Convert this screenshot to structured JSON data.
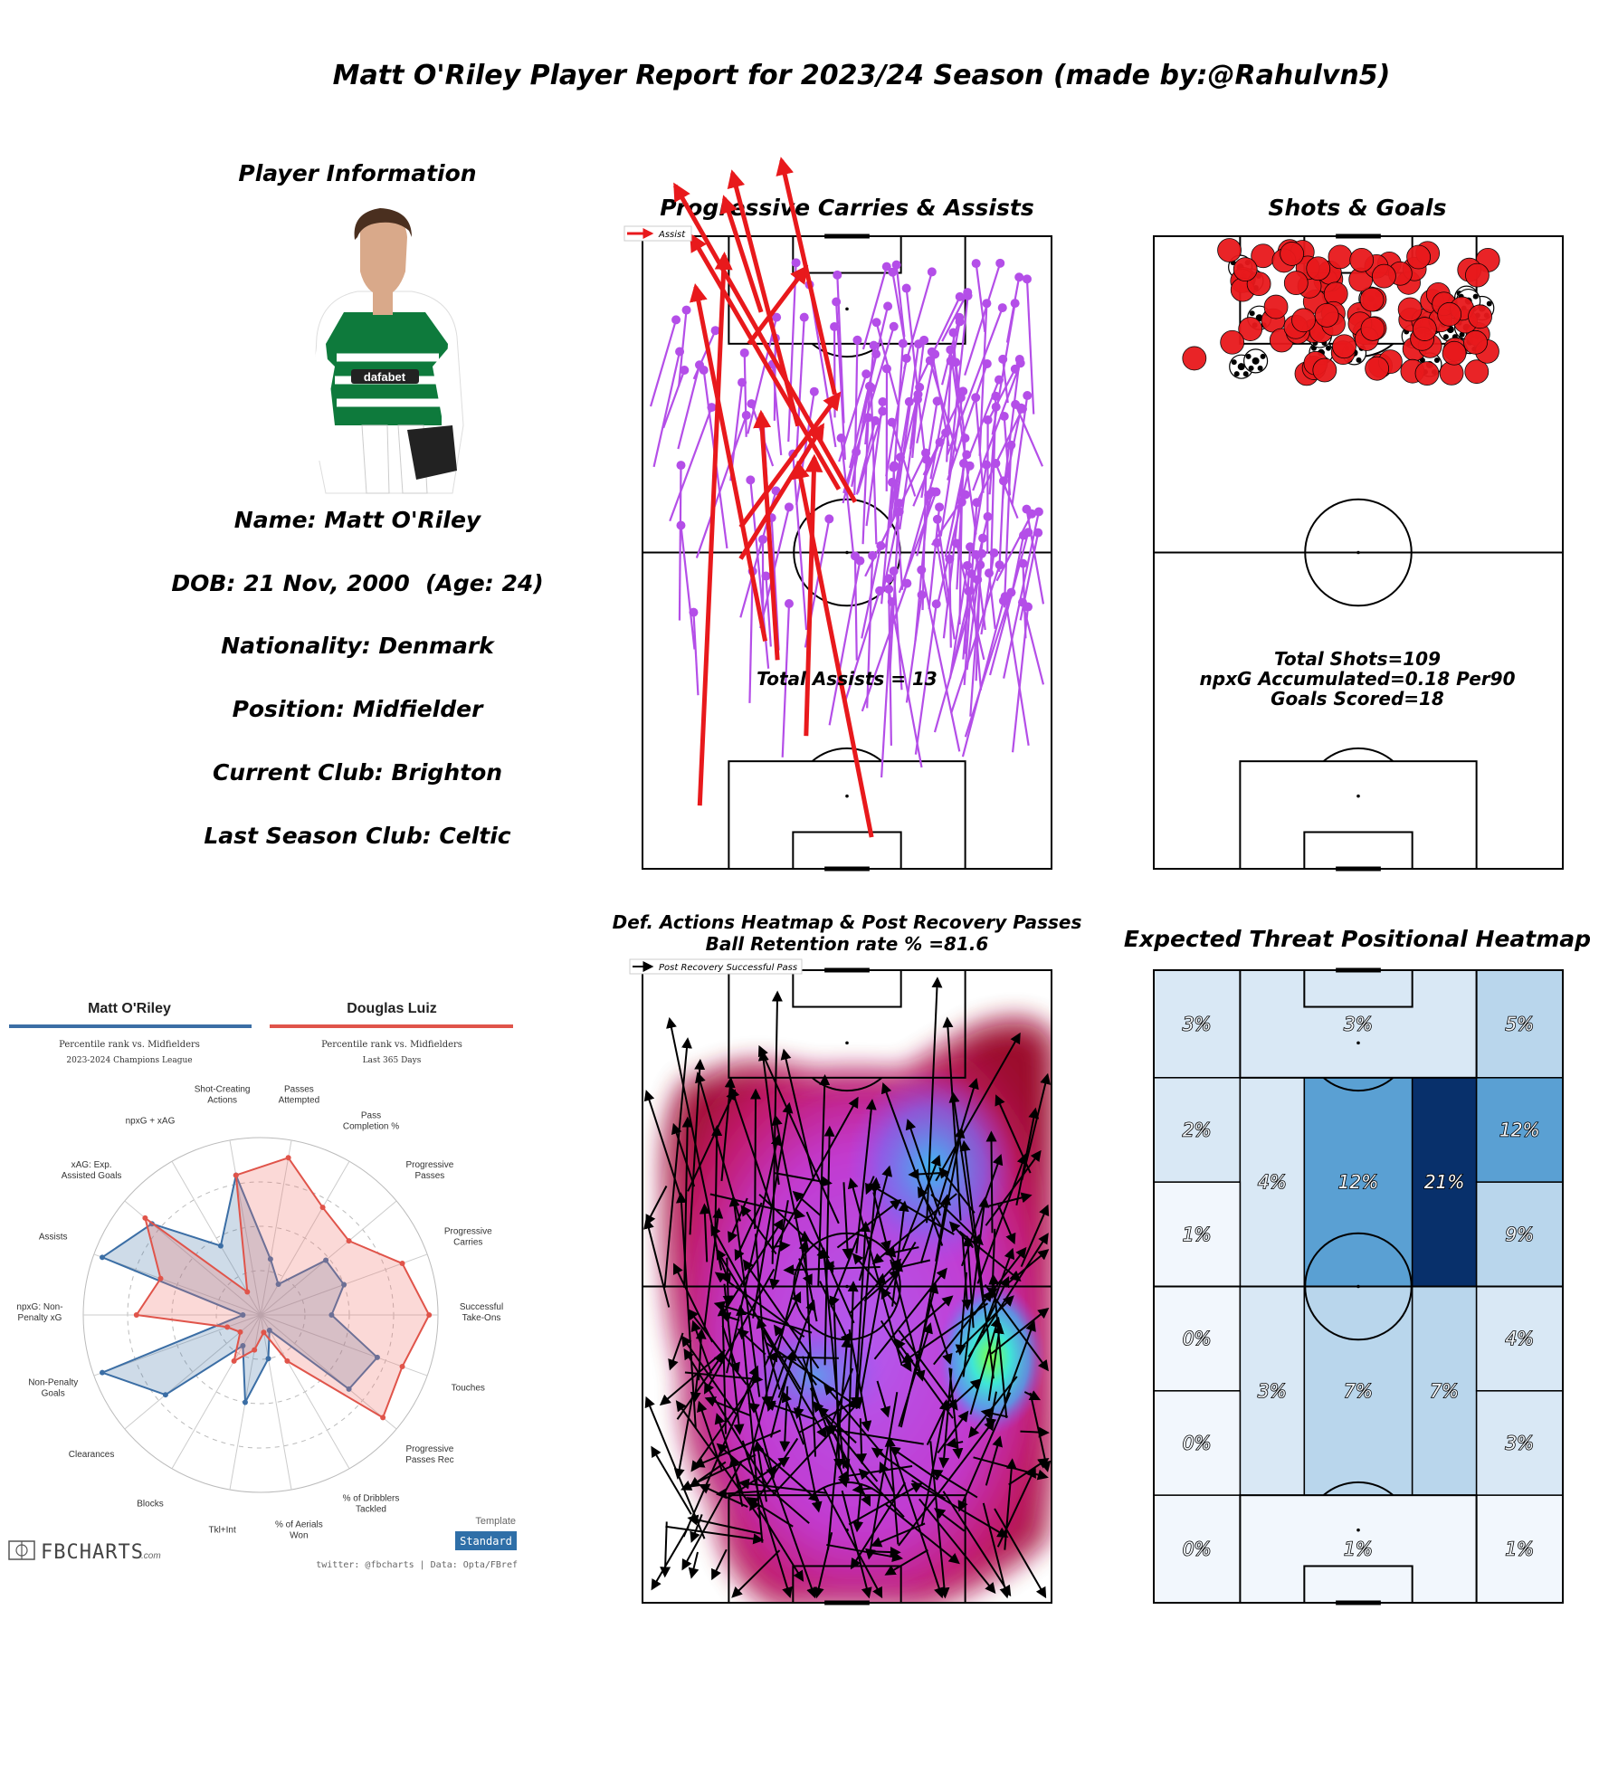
{
  "report": {
    "title": "Matt O'Riley Player Report for 2023/24 Season (made by:@Rahulvn5)"
  },
  "player_info": {
    "heading": "Player Information",
    "lines": [
      "Name: Matt O'Riley",
      "DOB: 21 Nov, 2000  (Age: 24)",
      "Nationality: Denmark",
      "Position: Midfielder",
      "Current Club: Brighton",
      "Last Season Club: Celtic"
    ],
    "photo_kit_colors": {
      "green": "#0e7a3c",
      "white": "#ffffff",
      "skin": "#d9a98a",
      "hair": "#4a2f1f"
    }
  },
  "radar": {
    "player_a": {
      "name": "Matt O'Riley",
      "subtitle": "Percentile rank vs. Midfielders",
      "competition": "2023-2024 Champions League",
      "color": "#3b6ea5"
    },
    "player_b": {
      "name": "Douglas Luiz",
      "subtitle": "Percentile rank vs. Midfielders",
      "competition": "Last 365 Days",
      "color": "#e0544a"
    },
    "brand": "FBCHARTS",
    "brand_suffix": ".com",
    "template_label": "Template",
    "template_value": "Standard",
    "footer": "twitter: @fbcharts | Data: Opta/FBref"
  },
  "chart_data": [
    {
      "type": "scatter",
      "title": "Progressive Carries & Assists",
      "legend": "Assist",
      "annotation": "Total Assists = 13",
      "colors": {
        "carry": "#b44ee8",
        "assist": "#e8191c"
      },
      "assists": [
        {
          "x": 83,
          "y": 26,
          "x2": 95,
          "y2": 40
        },
        {
          "x": 70,
          "y": 38,
          "x2": 110,
          "y2": 22
        },
        {
          "x": 75,
          "y": 47,
          "x2": 112,
          "y2": 34
        },
        {
          "x": 88,
          "y": 29,
          "x2": 106,
          "y2": 20
        },
        {
          "x": 60,
          "y": 48,
          "x2": 100,
          "y2": 12
        },
        {
          "x": 58,
          "y": 52,
          "x2": 108,
          "y2": 8
        },
        {
          "x": 54,
          "y": 24,
          "x2": 75,
          "y2": 48
        },
        {
          "x": 49,
          "y": 24,
          "x2": 70,
          "y2": 44
        },
        {
          "x": 36,
          "y": 30,
          "x2": 92,
          "y2": 13
        },
        {
          "x": 21,
          "y": 40,
          "x2": 65,
          "y2": 42
        },
        {
          "x": 10,
          "y": 14,
          "x2": 97,
          "y2": 20
        },
        {
          "x": 5,
          "y": 56,
          "x2": 64,
          "y2": 38
        },
        {
          "x": 33,
          "y": 33,
          "x2": 72,
          "y2": 29
        }
      ],
      "carries_count": 170
    },
    {
      "type": "scatter",
      "title": "Shots & Goals",
      "annotation": [
        "Total Shots=109",
        "npxG Accumulated=0.18 Per90",
        "Goals Scored=18"
      ],
      "colors": {
        "shot": "#e8191c",
        "goal_ball": "#ffffff"
      },
      "total_shots": 109,
      "goals": 18,
      "npxg_per90": 0.18
    },
    {
      "type": "heatmap",
      "title": "Def. Actions Heatmap & Post Recovery Passes",
      "subtitle": "Ball Retention rate % =81.6",
      "legend": "Post Recovery Successful Pass",
      "ball_retention_rate": 81.6,
      "colormap": [
        "#9c0e2e",
        "#c21a6a",
        "#d12ca8",
        "#a24bf0",
        "#4aa8f0",
        "#3fe6d6",
        "#7dff4a"
      ]
    },
    {
      "type": "heatmap",
      "title": "Expected Threat Positional Heatmap",
      "zones": [
        {
          "label": "3%",
          "value": 3
        },
        {
          "label": "3%",
          "value": 3
        },
        {
          "label": "5%",
          "value": 5
        },
        {
          "label": "2%",
          "value": 2
        },
        {
          "label": "4%",
          "value": 4
        },
        {
          "label": "12%",
          "value": 12
        },
        {
          "label": "21%",
          "value": 21
        },
        {
          "label": "12%",
          "value": 12
        },
        {
          "label": "1%",
          "value": 1
        },
        {
          "label": "9%",
          "value": 9
        },
        {
          "label": "0%",
          "value": 0
        },
        {
          "label": "3%",
          "value": 3
        },
        {
          "label": "7%",
          "value": 7
        },
        {
          "label": "7%",
          "value": 7
        },
        {
          "label": "4%",
          "value": 4
        },
        {
          "label": "0%",
          "value": 0
        },
        {
          "label": "3%",
          "value": 3
        },
        {
          "label": "0%",
          "value": 0
        },
        {
          "label": "1%",
          "value": 1
        },
        {
          "label": "1%",
          "value": 1
        }
      ],
      "colors": [
        "#f2f7fd",
        "#d9e8f5",
        "#b9d6ec",
        "#5aa0d3",
        "#08306b"
      ]
    },
    {
      "type": "radar",
      "title": "",
      "axes": [
        "Passes Attempted",
        "Pass Completion %",
        "Progressive Passes",
        "Progressive Carries",
        "Successful Take-Ons",
        "Touches",
        "Progressive Passes Rec",
        "% of Dribblers Tackled",
        "% of Aerials Won",
        "Tkl+Int",
        "Blocks",
        "Clearances",
        "Non-Penalty Goals",
        "npxG: Non-Penalty xG",
        "Assists",
        "xAG: Exp. Assisted Goals",
        "npxG + xAG",
        "Shot-Creating Actions"
      ],
      "axis_labels": [
        [
          "Passes",
          "Attempted"
        ],
        [
          "Pass",
          "Completion %"
        ],
        [
          "Progressive",
          "Passes"
        ],
        [
          "Progressive",
          "Carries"
        ],
        [
          "Successful",
          "Take-Ons"
        ],
        [
          "Touches"
        ],
        [
          "Progressive",
          "Passes Rec"
        ],
        [
          "% of Dribblers",
          "Tackled"
        ],
        [
          "% of Aerials",
          "Won"
        ],
        [
          "Tkl+Int"
        ],
        [
          "Blocks"
        ],
        [
          "Clearances"
        ],
        [
          "Non-Penalty",
          "Goals"
        ],
        [
          "npxG: Non-",
          "Penalty xG"
        ],
        [
          "Assists"
        ],
        [
          "xAG: Exp.",
          "Assisted Goals"
        ],
        [
          "npxG + xAG"
        ],
        [
          "Shot-Creating",
          "Actions"
        ]
      ],
      "series": [
        {
          "name": "Matt O'Riley",
          "values": [
            32,
            20,
            48,
            50,
            40,
            70,
            65,
            10,
            25,
            50,
            20,
            70,
            95,
            10,
            95,
            80,
            45,
            80
          ]
        },
        {
          "name": "Douglas Luiz",
          "values": [
            90,
            70,
            65,
            85,
            95,
            85,
            90,
            30,
            10,
            20,
            30,
            15,
            20,
            70,
            60,
            85,
            15,
            80
          ]
        }
      ],
      "range": [
        0,
        100
      ]
    }
  ]
}
